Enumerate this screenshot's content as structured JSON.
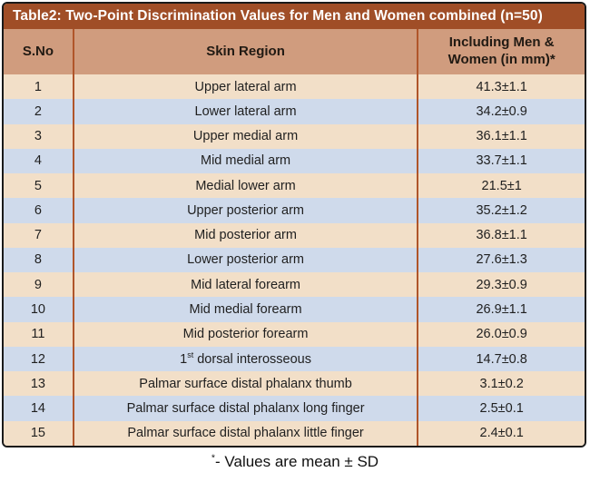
{
  "chart_data": {
    "type": "table",
    "title": "Table2: Two-Point Discrimination Values for Men and Women combined (n=50)",
    "columns": [
      "S.No",
      "Skin Region",
      "Including Men & Women (in mm)*"
    ],
    "rows": [
      [
        "1",
        "Upper lateral arm",
        "41.3±1.1"
      ],
      [
        "2",
        "Lower lateral arm",
        "34.2±0.9"
      ],
      [
        "3",
        "Upper medial arm",
        "36.1±1.1"
      ],
      [
        "4",
        "Mid medial arm",
        "33.7±1.1"
      ],
      [
        "5",
        "Medial lower arm",
        "21.5±1"
      ],
      [
        "6",
        "Upper posterior arm",
        "35.2±1.2"
      ],
      [
        "7",
        "Mid posterior arm",
        "36.8±1.1"
      ],
      [
        "8",
        "Lower posterior arm",
        "27.6±1.3"
      ],
      [
        "9",
        "Mid lateral forearm",
        "29.3±0.9"
      ],
      [
        "10",
        "Mid medial forearm",
        "26.9±1.1"
      ],
      [
        "11",
        "Mid posterior forearm",
        "26.0±0.9"
      ],
      [
        "12",
        "1st dorsal interosseous",
        "14.7±0.8"
      ],
      [
        "13",
        "Palmar surface distal phalanx thumb",
        "3.1±0.2"
      ],
      [
        "14",
        "Palmar surface distal phalanx long finger",
        "2.5±0.1"
      ],
      [
        "15",
        "Palmar surface distal phalanx little finger",
        "2.4±0.1"
      ]
    ],
    "footnote": "*- Values are mean ± SD",
    "layout": {
      "grid": "off",
      "row_striping": "alternating peach and blue"
    }
  },
  "display": {
    "row12_region": {
      "pre": "1",
      "sup": "st",
      "rest": " dorsal interosseous"
    },
    "footnote": {
      "sup": "*",
      "text": "- Values are mean ± SD"
    }
  },
  "colors": {
    "title_bar_bg": "#A04E27",
    "header_bg": "#D09C7E",
    "row_odd_bg": "#F2DFC8",
    "row_even_bg": "#CFDAEB",
    "column_divider": "#B0552A",
    "outer_border": "#1A1A1A",
    "title_text": "#FFFFFF",
    "body_text": "#1F1F1F"
  }
}
